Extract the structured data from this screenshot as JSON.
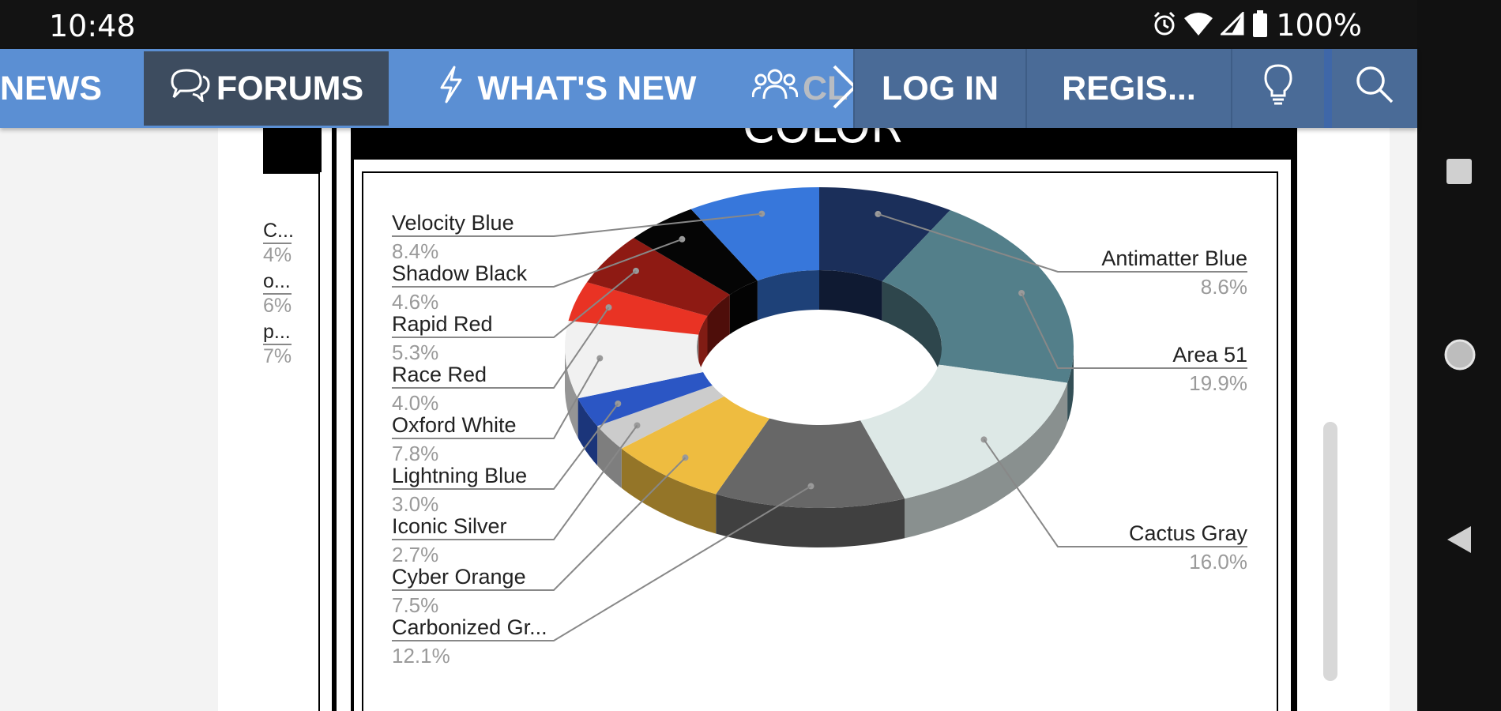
{
  "status_bar": {
    "time": "10:48",
    "battery": "100%",
    "icons": [
      "alarm-icon",
      "wifi-icon",
      "signal-icon",
      "battery-icon"
    ]
  },
  "navbar": {
    "news": "NEWS",
    "forums": "FORUMS",
    "whats_new": "WHAT'S NEW",
    "club": "CL",
    "login": "LOG IN",
    "register": "REGIS...",
    "icons": [
      "chat-bubbles-icon",
      "lightning-icon",
      "users-icon",
      "chevron-right-icon",
      "lightbulb-icon",
      "search-icon"
    ]
  },
  "left_panel": {
    "items": [
      {
        "label": "C...",
        "pct": "4%"
      },
      {
        "label": "o...",
        "pct": "6%"
      },
      {
        "label": "p...",
        "pct": "7%"
      }
    ]
  },
  "chart_panel": {
    "heading": "COLOR"
  },
  "colors": {
    "nav_bg": "#5b8fd3",
    "nav_active": "#3d4c5f",
    "nav_right_bg": "#4a6b97"
  },
  "chart_data": {
    "type": "pie",
    "donut": true,
    "three_d": true,
    "legend": "leader-line labels",
    "slices": [
      {
        "label": "Antimatter Blue",
        "value": 8.6,
        "display": "8.6%",
        "color": "#1b2f5a"
      },
      {
        "label": "Area 51",
        "value": 19.9,
        "display": "19.9%",
        "color": "#537f8a"
      },
      {
        "label": "Cactus Gray",
        "value": 16.0,
        "display": "16.0%",
        "color": "#dde8e6"
      },
      {
        "label": "Carbonized Gr...",
        "value": 12.1,
        "display": "12.1%",
        "color": "#676767"
      },
      {
        "label": "Cyber Orange",
        "value": 7.5,
        "display": "7.5%",
        "color": "#eebc40"
      },
      {
        "label": "Iconic Silver",
        "value": 2.7,
        "display": "2.7%",
        "color": "#cccccc"
      },
      {
        "label": "Lightning Blue",
        "value": 3.0,
        "display": "3.0%",
        "color": "#2b56c4"
      },
      {
        "label": "Oxford White",
        "value": 7.8,
        "display": "7.8%",
        "color": "#f1f1f1"
      },
      {
        "label": "Race Red",
        "value": 4.0,
        "display": "4.0%",
        "color": "#e93324"
      },
      {
        "label": "Rapid Red",
        "value": 5.3,
        "display": "5.3%",
        "color": "#8e1a13"
      },
      {
        "label": "Shadow Black",
        "value": 4.6,
        "display": "4.6%",
        "color": "#050505"
      },
      {
        "label": "Velocity Blue",
        "value": 8.4,
        "display": "8.4%",
        "color": "#3777db"
      }
    ]
  }
}
